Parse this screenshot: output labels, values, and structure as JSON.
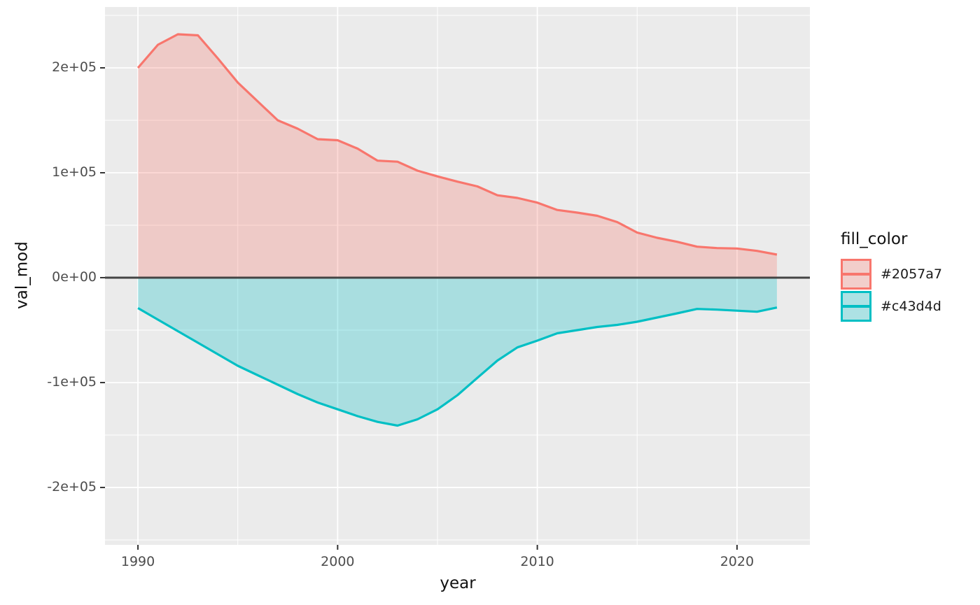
{
  "figure": {
    "background": "#FFFFFF"
  },
  "chart_data": {
    "type": "area",
    "title": "",
    "xlabel": "year",
    "ylabel": "val_mod",
    "legend_position": "right",
    "grid": true,
    "panel_bg": "#EBEBEB",
    "grid_color": "#FFFFFF",
    "zero_line_color": "#444444",
    "tick_mark_color": "#333333",
    "tick_label_color": "#4D4D4D",
    "baseline": 0,
    "x": [
      1990,
      1991,
      1992,
      1993,
      1994,
      1995,
      1996,
      1997,
      1998,
      1999,
      2000,
      2001,
      2002,
      2003,
      2004,
      2005,
      2006,
      2007,
      2008,
      2009,
      2010,
      2011,
      2012,
      2013,
      2014,
      2015,
      2016,
      2017,
      2018,
      2019,
      2020,
      2021,
      2022
    ],
    "series": [
      {
        "name": "#2057a7",
        "line_color": "#F8766D",
        "fill_alpha": 0.28,
        "values": [
          200000,
          222000,
          232000,
          231000,
          209000,
          186000,
          168000,
          150000,
          142000,
          132000,
          131000,
          123000,
          111500,
          110500,
          102000,
          96500,
          91500,
          87000,
          78500,
          76000,
          71500,
          64500,
          62000,
          59000,
          53000,
          43000,
          38000,
          34200,
          29500,
          28200,
          27800,
          25500,
          22000
        ]
      },
      {
        "name": "#c43d4d",
        "line_color": "#00BFC4",
        "fill_alpha": 0.28,
        "values": [
          -29000,
          -40000,
          -51000,
          -62000,
          -73000,
          -84000,
          -93000,
          -102000,
          -111000,
          -119000,
          -125500,
          -132000,
          -137500,
          -141000,
          -135000,
          -125500,
          -112000,
          -95500,
          -79000,
          -66500,
          -60000,
          -53000,
          -50000,
          -47000,
          -45000,
          -42000,
          -38000,
          -34000,
          -29800,
          -30500,
          -31500,
          -32500,
          -28500
        ]
      }
    ],
    "x_axis": {
      "label": "year",
      "domain": [
        1988.35,
        2023.65
      ],
      "major_ticks": [
        1990,
        2000,
        2010,
        2020
      ],
      "tick_labels": [
        "1990",
        "2000",
        "2010",
        "2020"
      ],
      "minor_ticks": [
        1995,
        2005,
        2015
      ]
    },
    "y_axis": {
      "label": "val_mod",
      "domain": [
        -254700,
        258000
      ],
      "major_ticks": [
        200000,
        100000,
        0,
        -100000,
        -200000
      ],
      "tick_labels": [
        "2e+05",
        "1e+05",
        "0e+00",
        "-1e+05",
        "-2e+05"
      ],
      "minor_ticks": [
        250000,
        150000,
        50000,
        -50000,
        -150000,
        -250000
      ]
    }
  },
  "legend": {
    "title": "fill_color",
    "items": [
      {
        "label": "#2057a7",
        "color": "#F8766D"
      },
      {
        "label": "#c43d4d",
        "color": "#00BFC4"
      }
    ]
  }
}
